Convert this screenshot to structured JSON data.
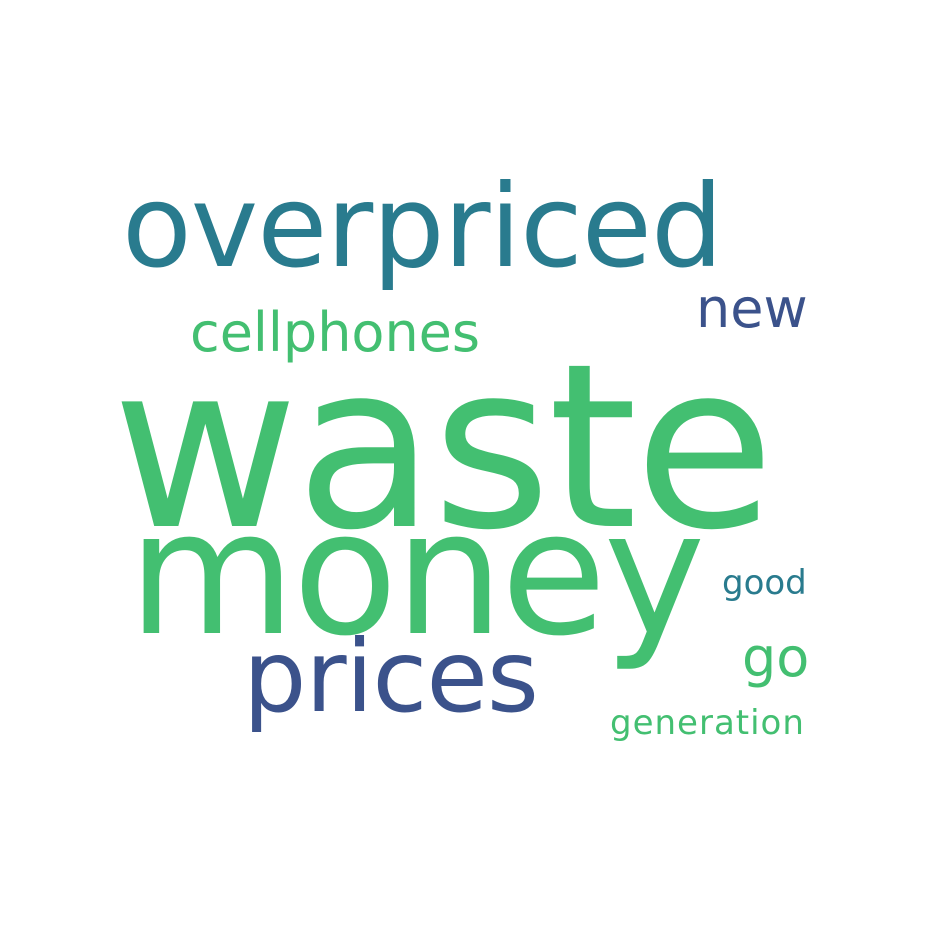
{
  "words": {
    "waste": {
      "text": "waste",
      "color": "#43bf71"
    },
    "money": {
      "text": "money",
      "color": "#43bf71"
    },
    "overpriced": {
      "text": "overpriced",
      "color": "#297b8e"
    },
    "prices": {
      "text": "prices",
      "color": "#3b528b"
    },
    "cellphones": {
      "text": "cellphones",
      "color": "#43bf71"
    },
    "new": {
      "text": "new",
      "color": "#3b528b"
    },
    "go": {
      "text": "go",
      "color": "#43bf71"
    },
    "good": {
      "text": "good",
      "color": "#297b8e"
    },
    "generation": {
      "text": "generation",
      "color": "#43bf71"
    }
  }
}
